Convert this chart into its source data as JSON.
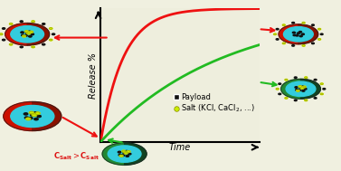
{
  "background_color": "#f0f0e0",
  "plot_bg_color": "#eeeedd",
  "red_curve_color": "#ee1111",
  "green_curve_color": "#22bb22",
  "axis_label_release": "Release %",
  "axis_label_time": "Time",
  "legend_payload_color": "#111111",
  "legend_salt_color_inner": "#ccee00",
  "legend_salt_color_outer": "#888800",
  "axis_fontsize": 7,
  "legend_fontsize": 6,
  "nano_red": "#cc1100",
  "nano_cyan": "#33ccdd",
  "nano_green": "#22aa22",
  "nano_dark": "#111122",
  "nano_yellow": "#ccee00",
  "nano_yellow_outline": "#999900"
}
